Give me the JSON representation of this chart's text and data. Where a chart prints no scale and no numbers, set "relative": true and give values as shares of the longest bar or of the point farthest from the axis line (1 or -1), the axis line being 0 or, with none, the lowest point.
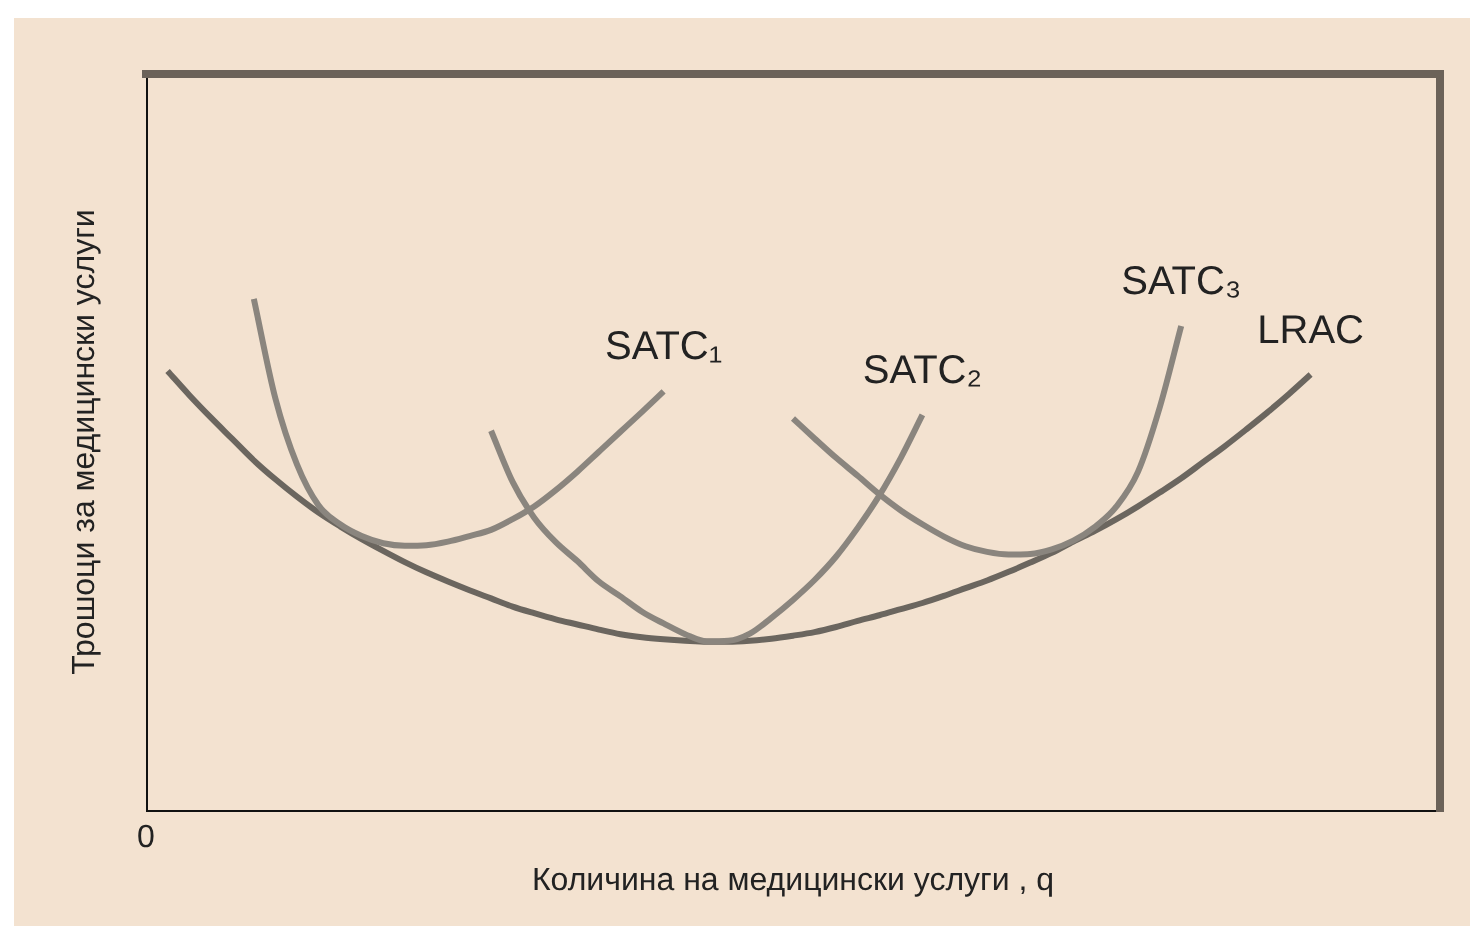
{
  "chart_data": {
    "type": "line",
    "relative": true,
    "xlabel": "Количина на медицински услуги , q",
    "ylabel": "Трошоци за медицински услуги",
    "annotations": [
      "0"
    ],
    "categories": [
      null,
      null,
      null,
      null,
      null,
      null,
      null,
      null,
      null,
      null,
      null,
      null,
      null,
      null,
      null,
      null,
      null,
      null,
      null,
      null,
      null,
      null,
      null,
      null,
      null,
      null,
      null,
      null,
      null,
      null,
      null,
      null,
      null,
      null,
      null,
      null,
      null,
      null,
      null,
      null,
      null,
      null,
      null,
      null,
      null,
      null,
      null,
      null,
      null,
      null,
      null,
      null,
      null,
      null,
      null,
      null,
      null,
      null,
      null,
      null,
      null
    ],
    "series": [
      {
        "name": "SATC₁",
        "color": "#8a857e",
        "values": [
          null,
          null,
          null,
          null,
          null,
          1,
          0.805,
          0.676,
          0.596,
          0.559,
          0.536,
          0.522,
          0.517,
          0.518,
          0.525,
          0.536,
          0.548,
          0.569,
          0.594,
          0.626,
          0.662,
          0.701,
          0.74,
          0.779,
          0.819,
          null,
          null,
          null,
          null,
          null,
          null,
          null,
          null,
          null,
          null,
          null,
          null,
          null,
          null,
          null,
          null,
          null,
          null,
          null,
          null,
          null,
          null,
          null,
          null,
          null,
          null,
          null,
          null,
          null,
          null,
          null,
          null,
          null,
          null,
          null,
          null
        ]
      },
      {
        "name": "SATC₂",
        "color": "#8a857e",
        "values": [
          null,
          null,
          null,
          null,
          null,
          null,
          null,
          null,
          null,
          null,
          null,
          null,
          null,
          null,
          null,
          null,
          0.742,
          0.642,
          0.572,
          0.524,
          0.487,
          0.447,
          0.418,
          0.388,
          0.365,
          0.344,
          0.33,
          0.331,
          0.345,
          0.376,
          0.411,
          0.45,
          0.496,
          0.552,
          0.615,
          0.689,
          0.773,
          null,
          null,
          null,
          null,
          null,
          null,
          null,
          null,
          null,
          null,
          null,
          null,
          null,
          null,
          null,
          null,
          null,
          null,
          null,
          null,
          null,
          null,
          null,
          null
        ]
      },
      {
        "name": "SATC₃",
        "color": "#8a857e",
        "values": [
          null,
          null,
          null,
          null,
          null,
          null,
          null,
          null,
          null,
          null,
          null,
          null,
          null,
          null,
          null,
          null,
          null,
          null,
          null,
          null,
          null,
          null,
          null,
          null,
          null,
          null,
          null,
          null,
          null,
          null,
          0.766,
          0.727,
          0.689,
          0.654,
          0.618,
          0.586,
          0.559,
          0.535,
          0.516,
          0.505,
          0.5,
          0.501,
          0.51,
          0.527,
          0.554,
          0.594,
          0.662,
          0.787,
          0.947,
          null,
          null,
          null,
          null,
          null,
          null,
          null,
          null,
          null,
          null,
          null,
          null
        ]
      },
      {
        "name": "LRAC",
        "color": "#6b665f",
        "values": [
          null,
          0.859,
          0.812,
          0.768,
          0.726,
          0.684,
          0.647,
          0.613,
          0.582,
          0.555,
          0.53,
          0.507,
          0.485,
          0.465,
          0.447,
          0.43,
          0.414,
          0.398,
          0.385,
          0.373,
          0.363,
          0.353,
          0.344,
          0.338,
          0.334,
          0.331,
          0.329,
          0.329,
          0.331,
          0.335,
          0.341,
          0.348,
          0.358,
          0.37,
          0.381,
          0.393,
          0.405,
          0.419,
          0.434,
          0.449,
          0.466,
          0.484,
          0.503,
          0.525,
          0.546,
          0.569,
          0.594,
          0.621,
          0.649,
          0.68,
          0.711,
          0.744,
          0.778,
          0.814,
          0.852,
          null,
          null,
          null,
          null,
          null,
          null
        ]
      }
    ]
  }
}
